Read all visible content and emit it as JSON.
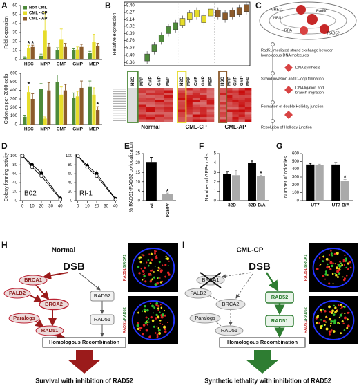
{
  "panel_labels": [
    "A",
    "B",
    "C",
    "D",
    "E",
    "F",
    "G",
    "H",
    "I"
  ],
  "chart_data": [
    {
      "type": "bar",
      "ylabel": "Fold expansion",
      "categories": [
        "HSC",
        "MPP",
        "CMP",
        "GMP",
        "MEP"
      ],
      "series": [
        {
          "name": "Non CML",
          "color": "#4e8a3a",
          "values": [
            2,
            4,
            10,
            10,
            7
          ],
          "errors": [
            1,
            2,
            3,
            2,
            2
          ]
        },
        {
          "name": "CML - CP",
          "color": "#e6dc2a",
          "values": [
            13,
            32,
            22,
            11,
            20
          ],
          "errors": [
            3,
            20,
            12,
            3,
            8
          ],
          "annotations": [
            "*",
            null,
            null,
            null,
            null
          ]
        },
        {
          "name": "CML - AP",
          "color": "#8b5a2b",
          "values": [
            14,
            14,
            14,
            14,
            15
          ],
          "errors": [
            2,
            4,
            4,
            3,
            3
          ],
          "annotations": [
            "*",
            null,
            null,
            null,
            null
          ]
        }
      ],
      "ylim": [
        0,
        60
      ],
      "yticks": [
        0,
        10,
        20,
        30,
        40,
        50,
        60
      ],
      "legend": "upper left"
    },
    {
      "type": "bar",
      "ylabel": "Colonies per 2000 cells",
      "categories": [
        "HSC",
        "MPP",
        "CMP",
        "GMP",
        "MEP"
      ],
      "series": [
        {
          "name": "Non CML",
          "color": "#4e8a3a",
          "values": [
            90,
            420,
            500,
            310,
            440
          ],
          "errors": [
            20,
            60,
            80,
            60,
            70
          ]
        },
        {
          "name": "CML - CP",
          "color": "#e6dc2a",
          "values": [
            380,
            70,
            350,
            330,
            350
          ],
          "errors": [
            70,
            20,
            90,
            60,
            80
          ],
          "annotations": [
            "*",
            null,
            null,
            null,
            null
          ]
        },
        {
          "name": "CML - AP",
          "color": "#8b5a2b",
          "values": [
            300,
            400,
            400,
            430,
            170
          ],
          "errors": [
            60,
            90,
            70,
            80,
            40
          ],
          "annotations": [
            null,
            null,
            null,
            null,
            "*"
          ]
        }
      ],
      "ylim": [
        0,
        600
      ],
      "yticks": [
        0,
        100,
        200,
        300,
        400,
        500,
        600
      ]
    },
    {
      "type": "box",
      "ylabel": "Relative expression",
      "categories": [
        "HSC",
        "MPP",
        "CMP",
        "GMP",
        "MEP"
      ],
      "series": [
        {
          "name": "Normal",
          "color": "#4e8a3a",
          "values": [
            8.45,
            8.62,
            8.8,
            8.95,
            9.02
          ]
        },
        {
          "name": "CML-CP",
          "color": "#e6dc2a",
          "values": [
            9.1,
            9.2,
            9.25,
            9.15,
            9.27
          ]
        },
        {
          "name": "CML-AP",
          "color": "#8b5a2b",
          "values": [
            9.25,
            9.2,
            9.25,
            9.3,
            9.35
          ]
        }
      ],
      "ylim": [
        8.3,
        9.46
      ],
      "yticks": [
        8.36,
        8.49,
        8.63,
        8.76,
        8.89,
        9.02,
        9.14,
        9.27,
        {
          "value": 9.4,
          "label": "9.40"
        }
      ]
    },
    {
      "type": "line",
      "ylabel": "Colony forming activity",
      "label": "B02",
      "x": [
        0,
        10,
        20,
        40
      ],
      "series": [
        {
          "color": "#000000",
          "values": [
            100,
            80,
            62,
            5
          ],
          "errors": [
            0,
            5,
            9,
            1
          ]
        },
        {
          "color": "#ffffff",
          "values": [
            100,
            75,
            55,
            3
          ],
          "errors": [
            0,
            4,
            6,
            1
          ]
        }
      ],
      "xlim": [
        -2,
        42
      ],
      "xticks": [
        0,
        10,
        20,
        30,
        40
      ],
      "ylim": [
        0,
        105
      ],
      "yticks": [
        0,
        20,
        40,
        60,
        80,
        100
      ]
    },
    {
      "type": "line",
      "label": "RI-1",
      "x": [
        0,
        10,
        20,
        40
      ],
      "series": [
        {
          "color": "#000000",
          "values": [
            100,
            78,
            60,
            4
          ],
          "errors": [
            0,
            5,
            7,
            1
          ]
        },
        {
          "color": "#ffffff",
          "values": [
            100,
            74,
            55,
            3
          ],
          "errors": [
            0,
            4,
            6,
            1
          ]
        }
      ],
      "xlim": [
        -2,
        42
      ],
      "xticks": [
        0,
        10,
        20,
        30,
        40
      ],
      "ylim": [
        0,
        105
      ],
      "yticks": [
        0,
        20,
        40,
        60,
        80,
        100
      ]
    },
    {
      "type": "bar",
      "ylabel": "% RAD51-RAD52 co-localization",
      "categories": [
        "wt",
        "F259V"
      ],
      "values": [
        20.5,
        3.5
      ],
      "errors": [
        2.5,
        0.5
      ],
      "colors": [
        "#000000",
        "#aaaaaa"
      ],
      "annotations": [
        null,
        "*"
      ],
      "ylim": [
        0,
        25
      ],
      "yticks": [
        0,
        5,
        10,
        15,
        20,
        25
      ]
    },
    {
      "type": "bar",
      "ylabel": "Number of GFP+ cells",
      "categories": [
        "32D",
        "32D-B/A"
      ],
      "series": [
        {
          "color": "#000000",
          "values": [
            2.8,
            4.0
          ],
          "errors": [
            0.3,
            0.2
          ]
        },
        {
          "color": "#aaaaaa",
          "values": [
            2.7,
            2.6
          ],
          "errors": [
            0.5,
            0.1
          ],
          "annotations": [
            null,
            "*"
          ]
        }
      ],
      "ylim": [
        0,
        5
      ],
      "yticks": [
        0,
        1,
        2,
        3,
        4,
        5
      ]
    },
    {
      "type": "bar",
      "ylabel": "Number of colonies",
      "categories": [
        "UT7",
        "UT7-B/A"
      ],
      "series": [
        {
          "color": "#000000",
          "values": [
            460,
            460
          ],
          "errors": [
            15,
            25
          ]
        },
        {
          "color": "#aaaaaa",
          "values": [
            455,
            250
          ],
          "errors": [
            10,
            20
          ],
          "annotations": [
            null,
            "*"
          ]
        }
      ],
      "ylim": [
        0,
        600
      ],
      "yticks": [
        0,
        100,
        200,
        300,
        400,
        500,
        600
      ]
    }
  ],
  "diagram_c": {
    "complex": [
      "MRE11",
      "Rad50",
      "NBS1",
      "RPA",
      "RAD52"
    ],
    "steps": [
      "Rad51-mediated strand exchange between",
      "homologous DNA molecules",
      "DNA synthesis",
      "Strand invasion and D-loop formation",
      "DNA ligation and",
      "branch migration",
      "Formation of double Holliday junction",
      "Resolution of Holliday junction"
    ]
  },
  "diagram_h": {
    "title": "Normal",
    "dsb": "DSB",
    "nodes": [
      "BRCA1",
      "PALB2",
      "BRCA2",
      "Paralogs",
      "RAD51",
      "RAD52",
      "RAD51"
    ],
    "outcome": "Homologous Recombination",
    "conclusion": "Survival with inhibition of RAD52",
    "stains": [
      [
        "RAD51",
        "/",
        "BRCA1"
      ],
      [
        "RAD51",
        "/",
        "RAD52"
      ]
    ]
  },
  "diagram_i": {
    "title": "CML-CP",
    "dsb": "DSB",
    "nodes": [
      "BRCA1",
      "PALB2",
      "BRCA2",
      "Paralogs",
      "RAD51",
      "RAD52",
      "RAD51"
    ],
    "outcome": "Homologous Recombination",
    "conclusion": "Synthetic lethality with inhibition of RAD52",
    "stains": [
      [
        "RAD51",
        "/",
        "BRCA1"
      ],
      [
        "RAD51",
        "/",
        "RAD52"
      ]
    ]
  }
}
